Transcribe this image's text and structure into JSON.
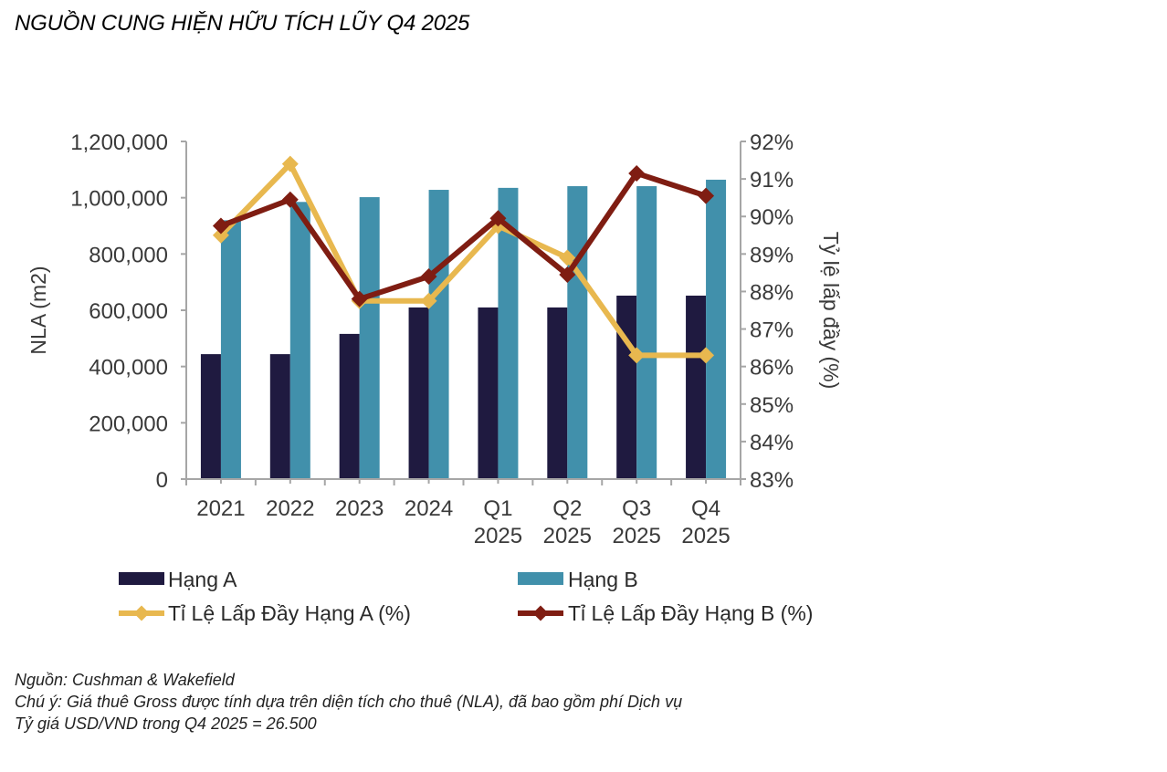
{
  "title": "NGUỒN CUNG HIỆN HỮU TÍCH LŨY Q4 2025",
  "notes": {
    "source": "Nguồn: Cushman & Wakefield",
    "note": "Chú ý: Giá thuê Gross được tính dựa trên diện tích cho thuê (NLA), đã bao gồm phí Dịch vụ",
    "fx": "Tỷ giá USD/VND trong Q4 2025 = 26.500"
  },
  "chart_data": {
    "type": "bar",
    "title": "NGUỒN CUNG HIỆN HỮU TÍCH LŨY Q4 2025",
    "categories": [
      [
        "2021"
      ],
      [
        "2022"
      ],
      [
        "2023"
      ],
      [
        "2024"
      ],
      [
        "Q1",
        "2025"
      ],
      [
        "Q2",
        "2025"
      ],
      [
        "Q3",
        "2025"
      ],
      [
        "Q4",
        "2025"
      ]
    ],
    "ylabel": "NLA (m2)",
    "ylim": [
      0,
      1200000
    ],
    "yticks": [
      "0",
      "200,000",
      "400,000",
      "600,000",
      "800,000",
      "1,000,000",
      "1,200,000"
    ],
    "ytick_values": [
      0,
      200000,
      400000,
      600000,
      800000,
      1000000,
      1200000
    ],
    "y2label": "Tỷ lệ lấp đầy (%)",
    "y2lim": [
      83,
      92
    ],
    "y2ticks": [
      "83%",
      "84%",
      "85%",
      "86%",
      "87%",
      "88%",
      "89%",
      "90%",
      "91%",
      "92%"
    ],
    "y2tick_values": [
      83,
      84,
      85,
      86,
      87,
      88,
      89,
      90,
      91,
      92
    ],
    "grid": false,
    "legend_position": "bottom",
    "series": [
      {
        "name": "Hạng A",
        "kind": "bar",
        "axis": "left",
        "color": "#1f1a40",
        "values": [
          444000,
          444000,
          516000,
          610000,
          610000,
          610000,
          652000,
          652000
        ]
      },
      {
        "name": "Hạng B",
        "kind": "bar",
        "axis": "left",
        "color": "#4190ab",
        "values": [
          920000,
          985000,
          1002000,
          1028000,
          1035000,
          1041000,
          1041000,
          1064000
        ]
      },
      {
        "name": "Tỉ Lệ Lấp Đầy Hạng A (%)",
        "kind": "line",
        "axis": "right",
        "color": "#e8b84f",
        "values": [
          89.5,
          91.4,
          87.75,
          87.75,
          89.75,
          88.9,
          86.3,
          86.3
        ]
      },
      {
        "name": "Tỉ Lệ Lấp Đầy Hạng B (%)",
        "kind": "line",
        "axis": "right",
        "color": "#7f1d12",
        "values": [
          89.75,
          90.45,
          87.8,
          88.4,
          89.95,
          88.45,
          91.15,
          90.55
        ]
      }
    ]
  }
}
